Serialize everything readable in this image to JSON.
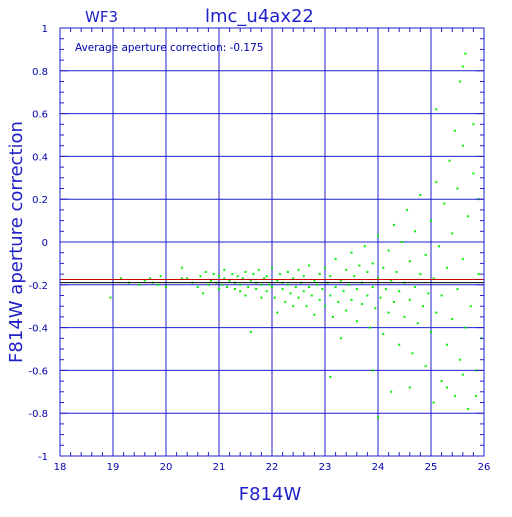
{
  "chart_data": {
    "type": "scatter",
    "title": "lmc_u4ax22",
    "panel_label": "WF3",
    "annotation": "Average aperture correction: -0.175",
    "xlabel": "F814W",
    "ylabel": "F814W aperture correction",
    "xlim": [
      18,
      26
    ],
    "ylim": [
      -1,
      1
    ],
    "x_ticks": [
      "18",
      "19",
      "20",
      "21",
      "22",
      "23",
      "24",
      "25",
      "26"
    ],
    "y_ticks": [
      "-1",
      "-0.8",
      "-0.6",
      "-0.4",
      "-0.2",
      "0",
      "0.2",
      "0.4",
      "0.6",
      "0.8",
      "1"
    ],
    "grid": true,
    "average_line": -0.175,
    "band_lines": [
      -0.19
    ],
    "colors": {
      "axis": "#2020c8",
      "grid": "#1f1fd0",
      "points": "#00ee00",
      "average_line": "#cc0000",
      "band_line": "#000000"
    },
    "points": [
      [
        18.95,
        -0.26
      ],
      [
        19.15,
        -0.17
      ],
      [
        19.3,
        -0.19
      ],
      [
        19.5,
        -0.2
      ],
      [
        19.6,
        -0.18
      ],
      [
        19.7,
        -0.17
      ],
      [
        19.75,
        -0.19
      ],
      [
        19.85,
        -0.2
      ],
      [
        19.9,
        -0.16
      ],
      [
        20.0,
        -0.21
      ],
      [
        20.3,
        -0.12
      ],
      [
        20.3,
        -0.17
      ],
      [
        20.4,
        -0.17
      ],
      [
        20.5,
        -0.19
      ],
      [
        20.6,
        -0.21
      ],
      [
        20.65,
        -0.16
      ],
      [
        20.7,
        -0.24
      ],
      [
        20.75,
        -0.14
      ],
      [
        20.8,
        -0.2
      ],
      [
        20.85,
        -0.18
      ],
      [
        20.9,
        -0.15
      ],
      [
        20.95,
        -0.19
      ],
      [
        21.0,
        -0.22
      ],
      [
        21.0,
        -0.16
      ],
      [
        21.05,
        -0.2
      ],
      [
        21.1,
        -0.13
      ],
      [
        21.1,
        -0.17
      ],
      [
        21.15,
        -0.21
      ],
      [
        21.2,
        -0.18
      ],
      [
        21.25,
        -0.15
      ],
      [
        21.3,
        -0.22
      ],
      [
        21.3,
        -0.19
      ],
      [
        21.35,
        -0.16
      ],
      [
        21.4,
        -0.23
      ],
      [
        21.4,
        -0.2
      ],
      [
        21.45,
        -0.17
      ],
      [
        21.5,
        -0.14
      ],
      [
        21.5,
        -0.25
      ],
      [
        21.55,
        -0.21
      ],
      [
        21.6,
        -0.18
      ],
      [
        21.6,
        -0.42
      ],
      [
        21.65,
        -0.15
      ],
      [
        21.7,
        -0.22
      ],
      [
        21.7,
        -0.19
      ],
      [
        21.75,
        -0.13
      ],
      [
        21.8,
        -0.2
      ],
      [
        21.8,
        -0.26
      ],
      [
        21.85,
        -0.17
      ],
      [
        21.9,
        -0.23
      ],
      [
        21.9,
        -0.16
      ],
      [
        21.95,
        -0.2
      ],
      [
        22.0,
        -0.21
      ],
      [
        22.0,
        -0.12
      ],
      [
        22.05,
        -0.26
      ],
      [
        22.1,
        -0.18
      ],
      [
        22.1,
        -0.33
      ],
      [
        22.15,
        -0.15
      ],
      [
        22.2,
        -0.22
      ],
      [
        22.2,
        -0.19
      ],
      [
        22.25,
        -0.28
      ],
      [
        22.3,
        -0.14
      ],
      [
        22.3,
        -0.2
      ],
      [
        22.35,
        -0.24
      ],
      [
        22.4,
        -0.17
      ],
      [
        22.4,
        -0.3
      ],
      [
        22.45,
        -0.21
      ],
      [
        22.5,
        -0.13
      ],
      [
        22.5,
        -0.26
      ],
      [
        22.55,
        -0.19
      ],
      [
        22.6,
        -0.23
      ],
      [
        22.6,
        -0.16
      ],
      [
        22.65,
        -0.3
      ],
      [
        22.7,
        -0.21
      ],
      [
        22.7,
        -0.11
      ],
      [
        22.75,
        -0.25
      ],
      [
        22.8,
        -0.18
      ],
      [
        22.8,
        -0.34
      ],
      [
        22.85,
        -0.2
      ],
      [
        22.9,
        -0.15
      ],
      [
        22.9,
        -0.27
      ],
      [
        22.95,
        -0.22
      ],
      [
        23.0,
        -0.12
      ],
      [
        23.0,
        -0.3
      ],
      [
        23.05,
        -0.19
      ],
      [
        23.1,
        -0.25
      ],
      [
        23.1,
        -0.16
      ],
      [
        23.15,
        -0.35
      ],
      [
        23.2,
        -0.21
      ],
      [
        23.2,
        -0.08
      ],
      [
        23.25,
        -0.28
      ],
      [
        23.3,
        -0.18
      ],
      [
        23.3,
        -0.45
      ],
      [
        23.35,
        -0.23
      ],
      [
        23.4,
        -0.13
      ],
      [
        23.4,
        -0.32
      ],
      [
        23.45,
        -0.2
      ],
      [
        23.5,
        -0.05
      ],
      [
        23.5,
        -0.27
      ],
      [
        23.55,
        -0.16
      ],
      [
        23.6,
        -0.37
      ],
      [
        23.6,
        -0.22
      ],
      [
        23.65,
        -0.11
      ],
      [
        23.7,
        -0.29
      ],
      [
        23.7,
        -0.19
      ],
      [
        23.75,
        -0.02
      ],
      [
        23.8,
        -0.25
      ],
      [
        23.8,
        -0.14
      ],
      [
        23.85,
        -0.4
      ],
      [
        23.9,
        -0.21
      ],
      [
        23.9,
        -0.1
      ],
      [
        23.95,
        -0.31
      ],
      [
        24.0,
        -0.17
      ],
      [
        24.0,
        0.03
      ],
      [
        24.05,
        -0.26
      ],
      [
        24.1,
        -0.12
      ],
      [
        24.1,
        -0.43
      ],
      [
        24.15,
        -0.22
      ],
      [
        24.2,
        -0.04
      ],
      [
        24.2,
        -0.33
      ],
      [
        24.25,
        -0.18
      ],
      [
        24.3,
        0.08
      ],
      [
        24.3,
        -0.28
      ],
      [
        24.35,
        -0.14
      ],
      [
        24.4,
        -0.48
      ],
      [
        24.4,
        -0.23
      ],
      [
        24.45,
        0.0
      ],
      [
        24.5,
        -0.35
      ],
      [
        24.5,
        -0.19
      ],
      [
        24.55,
        0.15
      ],
      [
        24.6,
        -0.27
      ],
      [
        24.6,
        -0.09
      ],
      [
        24.65,
        -0.52
      ],
      [
        24.7,
        -0.21
      ],
      [
        24.7,
        0.05
      ],
      [
        24.75,
        -0.38
      ],
      [
        24.8,
        -0.15
      ],
      [
        24.8,
        0.22
      ],
      [
        24.85,
        -0.3
      ],
      [
        24.9,
        -0.06
      ],
      [
        24.9,
        -0.58
      ],
      [
        24.95,
        -0.24
      ],
      [
        25.0,
        0.1
      ],
      [
        25.0,
        -0.42
      ],
      [
        25.05,
        -0.17
      ],
      [
        25.1,
        0.28
      ],
      [
        25.1,
        -0.33
      ],
      [
        25.15,
        -0.02
      ],
      [
        25.2,
        -0.65
      ],
      [
        25.2,
        -0.25
      ],
      [
        25.25,
        0.18
      ],
      [
        25.3,
        -0.48
      ],
      [
        25.3,
        -0.12
      ],
      [
        25.35,
        0.38
      ],
      [
        25.4,
        -0.36
      ],
      [
        25.4,
        0.04
      ],
      [
        25.45,
        -0.72
      ],
      [
        25.5,
        -0.22
      ],
      [
        25.5,
        0.25
      ],
      [
        25.55,
        -0.55
      ],
      [
        25.6,
        -0.08
      ],
      [
        25.6,
        0.45
      ],
      [
        25.65,
        -0.4
      ],
      [
        25.7,
        0.12
      ],
      [
        25.7,
        -0.78
      ],
      [
        25.75,
        -0.3
      ],
      [
        25.8,
        0.32
      ],
      [
        25.85,
        -0.6
      ],
      [
        25.9,
        -0.15
      ],
      [
        25.9,
        0.2
      ],
      [
        25.95,
        -0.45
      ],
      [
        25.55,
        0.75
      ],
      [
        25.6,
        0.82
      ],
      [
        25.65,
        0.88
      ],
      [
        25.1,
        0.62
      ],
      [
        25.45,
        0.52
      ],
      [
        25.8,
        0.55
      ],
      [
        25.05,
        -0.75
      ],
      [
        25.3,
        -0.68
      ],
      [
        25.6,
        -0.62
      ],
      [
        25.85,
        -0.72
      ],
      [
        24.0,
        -0.82
      ],
      [
        23.9,
        -0.6
      ],
      [
        24.6,
        -0.68
      ],
      [
        23.1,
        -0.63
      ],
      [
        24.25,
        -0.7
      ]
    ]
  }
}
